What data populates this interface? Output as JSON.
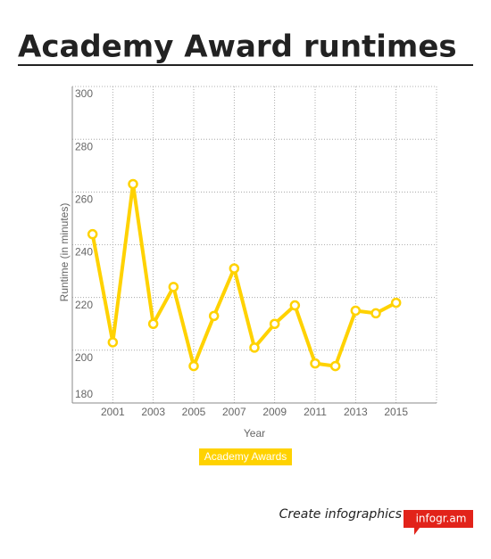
{
  "chart_data": {
    "type": "line",
    "title": "Academy Award runtimes",
    "x_label": "Year",
    "y_label": "Runtime (in minutes)",
    "x": [
      2000,
      2001,
      2002,
      2003,
      2004,
      2005,
      2006,
      2007,
      2008,
      2009,
      2010,
      2011,
      2012,
      2013,
      2014,
      2015
    ],
    "series": [
      {
        "name": "Academy Awards",
        "color": "#ffd200",
        "values": [
          244,
          203,
          263,
          210,
          224,
          194,
          213,
          231,
          201,
          210,
          217,
          195,
          194,
          215,
          214,
          218
        ]
      }
    ],
    "xlim": [
      1999,
      2017
    ],
    "xticks": [
      2001,
      2003,
      2005,
      2007,
      2009,
      2011,
      2013,
      2015
    ],
    "ylim": [
      180,
      300
    ],
    "yticks": [
      180,
      200,
      220,
      240,
      260,
      280,
      300
    ],
    "grid": true
  },
  "footer": {
    "text": "Create infographics",
    "badge": "infogr.am"
  }
}
